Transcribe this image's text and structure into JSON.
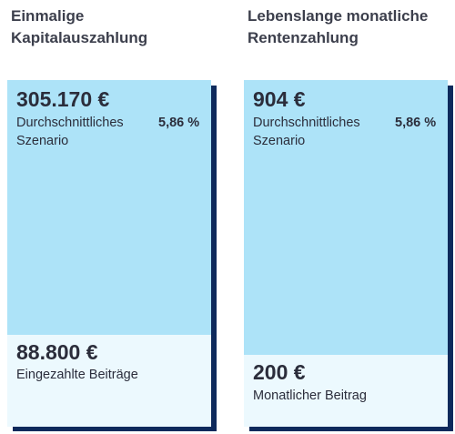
{
  "left": {
    "heading_line1": "Einmalige",
    "heading_line2": "Kapitalauszahlung",
    "top_amount": "305.170 €",
    "top_desc_line1": "Durchschnittliches",
    "top_desc_line2": "Szenario",
    "rate": "5,86 %",
    "bottom_amount": "88.800 €",
    "bottom_desc": "Eingezahlte Beiträge"
  },
  "right": {
    "heading_line1": "Lebenslange monatliche",
    "heading_line2": "Rentenzahlung",
    "top_amount": "904 €",
    "top_desc_line1": "Durchschnittliches",
    "top_desc_line2": "Szenario",
    "rate": "5,86 %",
    "bottom_amount": "200 €",
    "bottom_desc": "Monatlicher Beitrag"
  },
  "colors": {
    "scenario_fill": "#ade3f8",
    "contribution_fill": "#ecf9fe",
    "shadow": "#0e2a5c",
    "text": "#2b2d3b"
  }
}
